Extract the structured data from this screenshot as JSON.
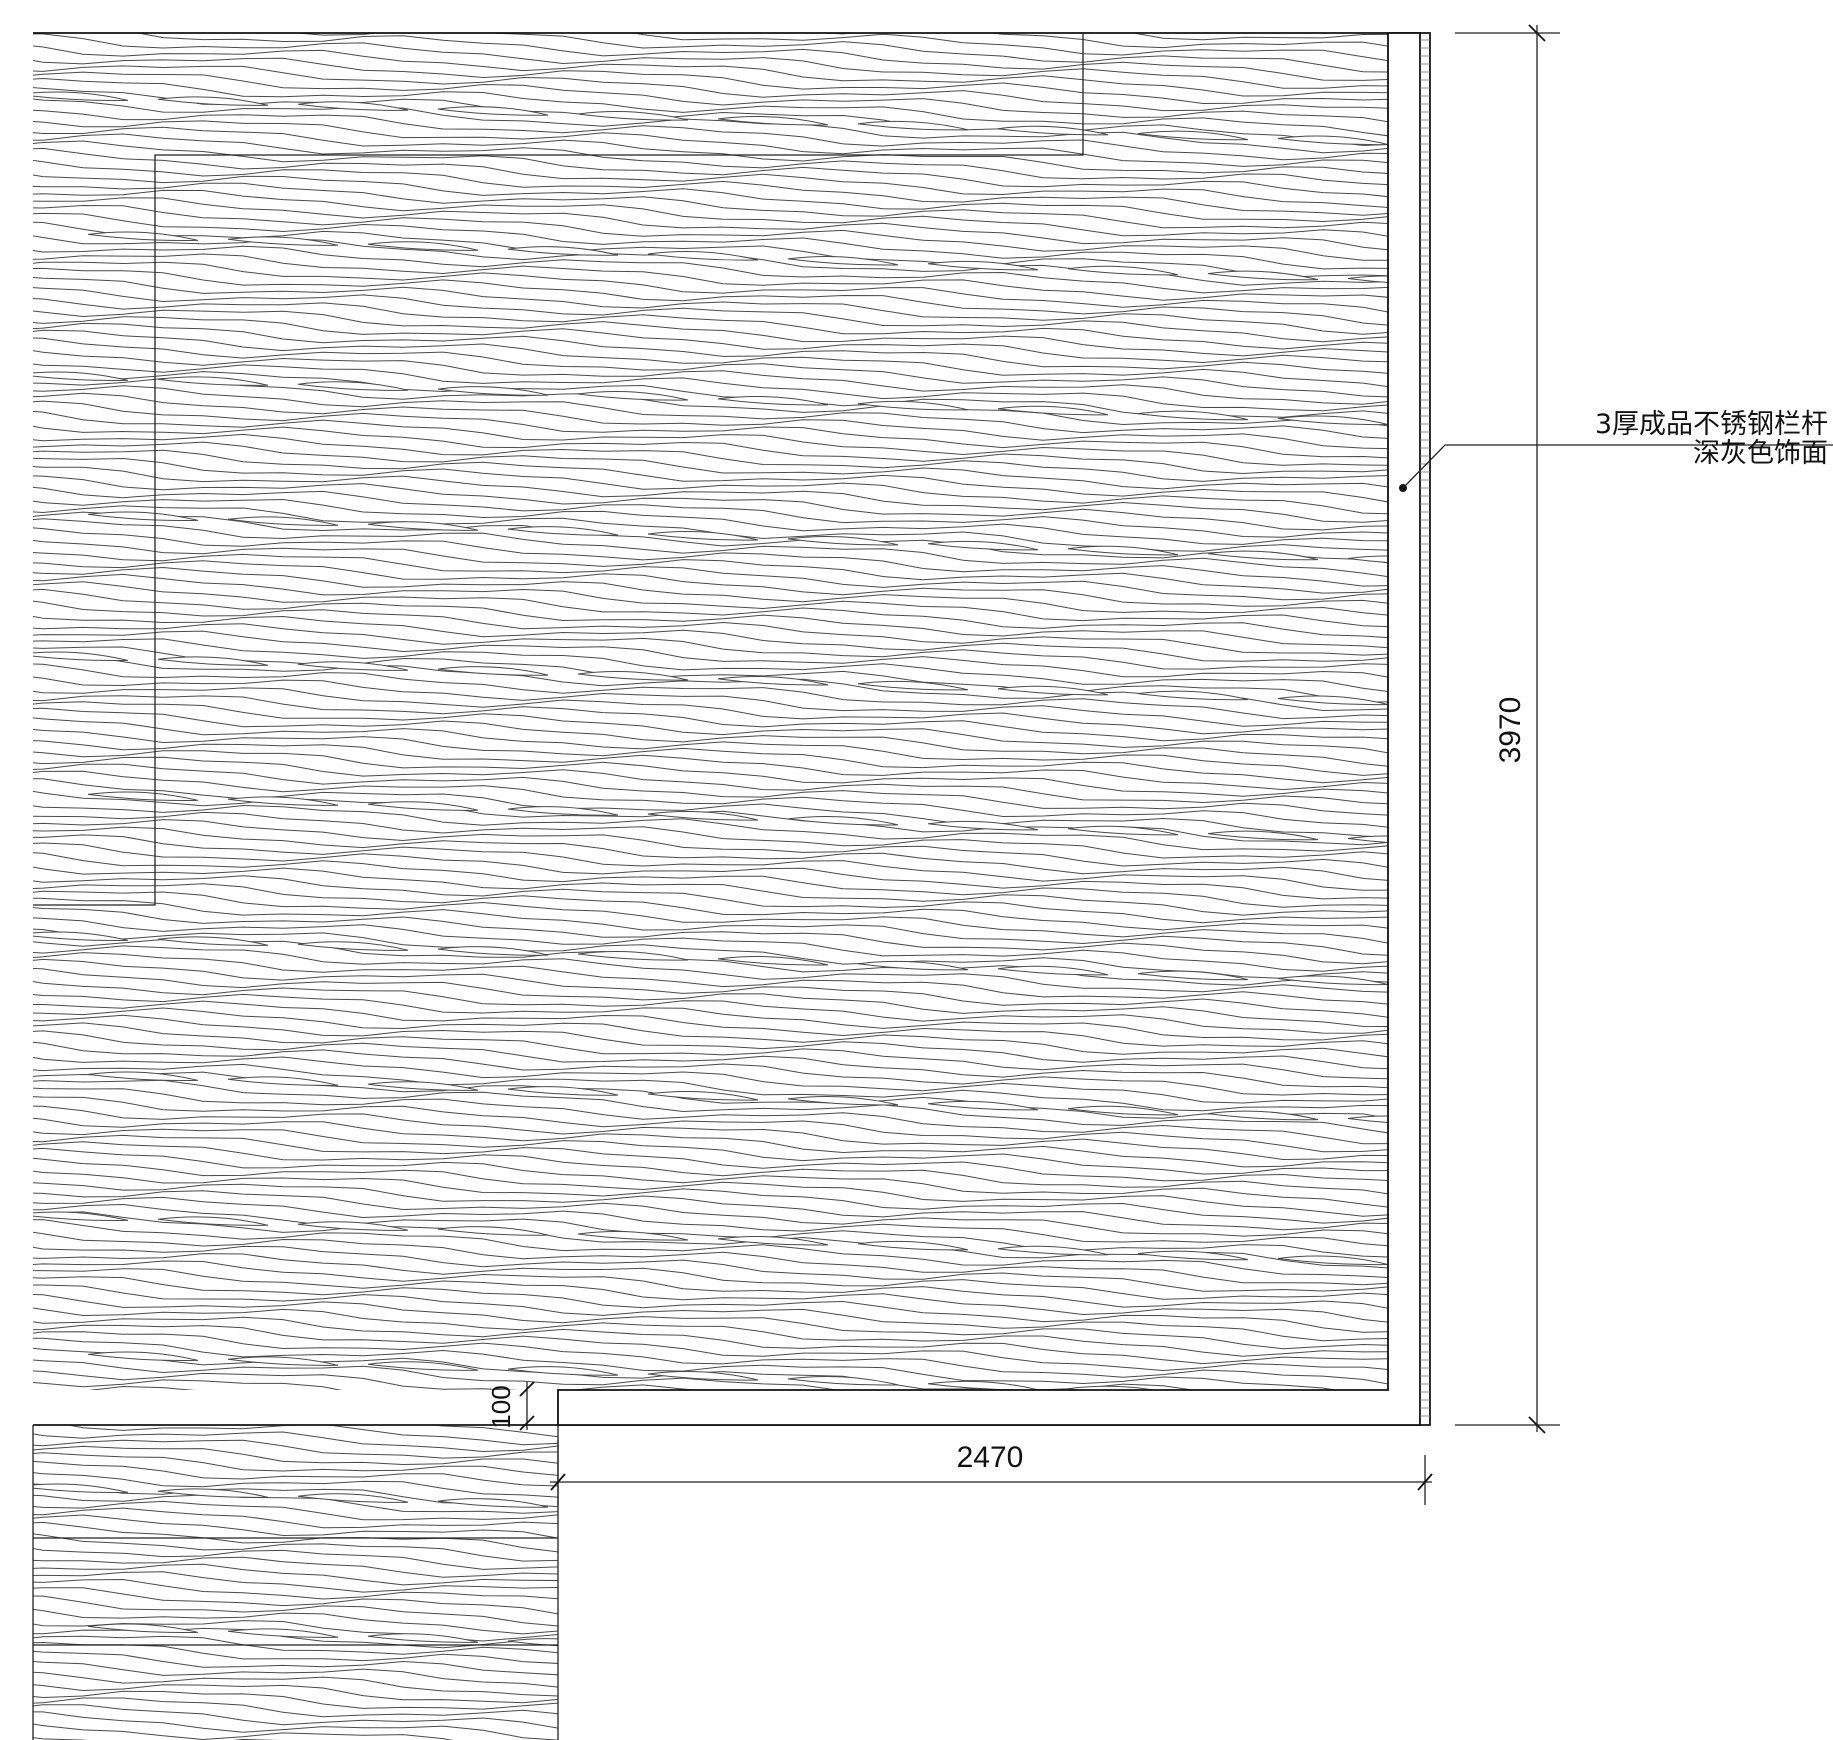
{
  "drawing": {
    "dimensions": {
      "vertical_overall": "3970",
      "horizontal_overall": "2470",
      "offset": "100"
    },
    "annotation": {
      "line1": "3厚成品不锈钢栏杆",
      "line2": "深灰色饰面"
    },
    "colors": {
      "line": "#222222",
      "hatch": "#4a4a4a",
      "background": "#ffffff"
    }
  }
}
